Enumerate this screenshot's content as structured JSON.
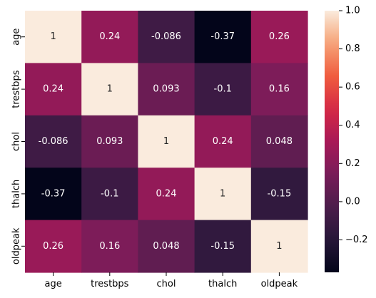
{
  "chart_data": {
    "type": "heatmap",
    "title": "",
    "xlabel": "",
    "ylabel": "",
    "x_categories": [
      "age",
      "trestbps",
      "chol",
      "thalch",
      "oldpeak"
    ],
    "y_categories": [
      "age",
      "trestbps",
      "chol",
      "thalch",
      "oldpeak"
    ],
    "values": [
      [
        1,
        0.24,
        -0.086,
        -0.37,
        0.26
      ],
      [
        0.24,
        1,
        0.093,
        -0.1,
        0.16
      ],
      [
        -0.086,
        0.093,
        1,
        0.24,
        0.048
      ],
      [
        -0.37,
        -0.1,
        0.24,
        1,
        -0.15
      ],
      [
        0.26,
        0.16,
        0.048,
        -0.15,
        1
      ]
    ],
    "annotations": [
      [
        "1",
        "0.24",
        "-0.086",
        "-0.37",
        "0.26"
      ],
      [
        "0.24",
        "1",
        "0.093",
        "-0.1",
        "0.16"
      ],
      [
        "-0.086",
        "0.093",
        "1",
        "0.24",
        "0.048"
      ],
      [
        "-0.37",
        "-0.1",
        "0.24",
        "1",
        "-0.15"
      ],
      [
        "0.26",
        "0.16",
        "0.048",
        "-0.15",
        "1"
      ]
    ],
    "colormap": "rocket",
    "color_range": [
      -0.37,
      1
    ],
    "colorbar_ticks": [
      -0.2,
      0.0,
      0.2,
      0.4,
      0.6,
      0.8,
      1.0
    ],
    "colorbar_tick_labels": [
      "−0.2",
      "0.0",
      "0.2",
      "0.4",
      "0.6",
      "0.8",
      "1.0"
    ],
    "colorbar": "right",
    "grid": false
  }
}
